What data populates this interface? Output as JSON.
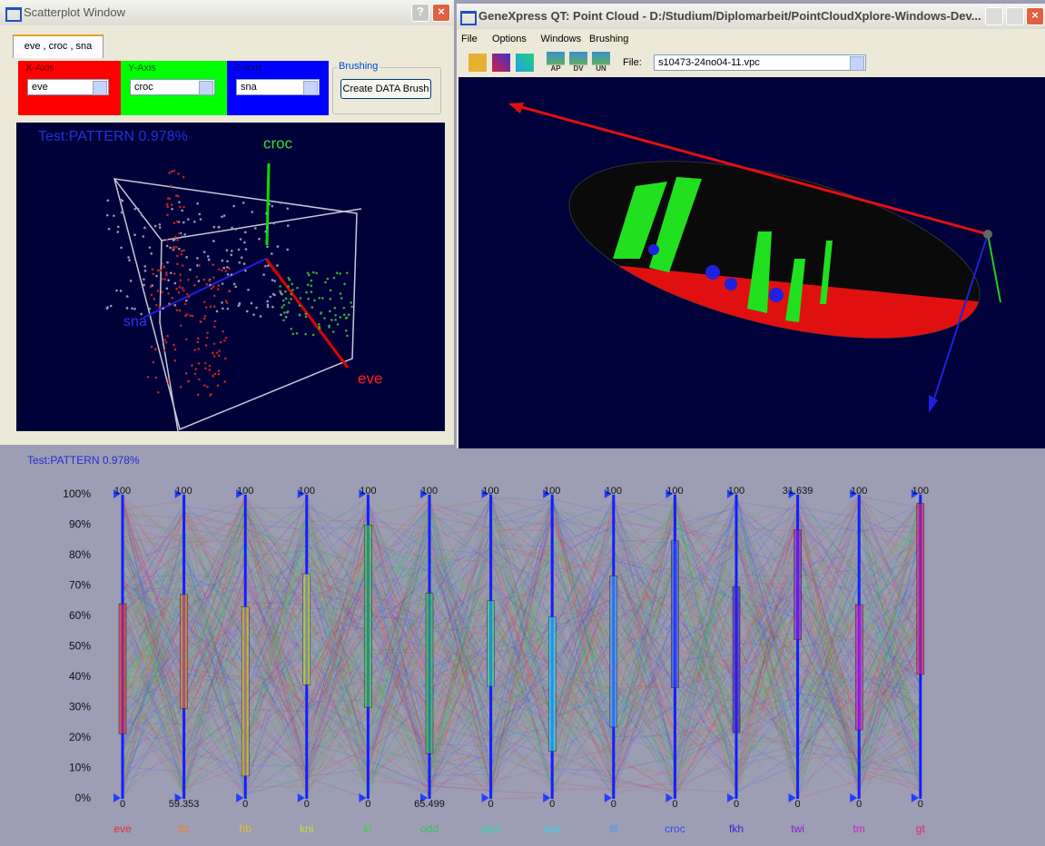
{
  "scatter_window": {
    "title": "Scatterplot Window",
    "tab": "eve , croc , sna",
    "x_axis": {
      "label": "X-Axis",
      "value": "eve"
    },
    "y_axis": {
      "label": "Y-Axis",
      "value": "croc"
    },
    "z_axis": {
      "label": "Z-Axis",
      "value": "sna"
    },
    "brushing": {
      "label": "Brushing",
      "button": "Create DATA Brush"
    },
    "view": {
      "caption": "Test:PATTERN 0.978%",
      "axis_labels": [
        "croc",
        "sna",
        "eve"
      ]
    }
  },
  "pointcloud_window": {
    "title": "GeneXpress QT: Point Cloud - D:/Studium/Diplomarbeit/PointCloudXplore-Windows-Dev...",
    "menu": [
      "File",
      "Options",
      "Windows",
      "Brushing"
    ],
    "toolbar": [
      "AP",
      "DV",
      "UN"
    ],
    "file_label": "File:",
    "file": "s10473-24no04-11.vpc"
  },
  "parallel_coordinates": {
    "caption": "Test:PATTERN 0.978%",
    "percent_labels": [
      "0%",
      "10%",
      "20%",
      "30%",
      "40%",
      "50%",
      "60%",
      "70%",
      "80%",
      "90%",
      "100%"
    ],
    "axes": [
      {
        "name": "eve",
        "color": "#e83030",
        "max": "100",
        "min": "0"
      },
      {
        "name": "ftz",
        "color": "#f08020",
        "max": "100",
        "min": "59.353"
      },
      {
        "name": "hb",
        "color": "#e8c020",
        "max": "100",
        "min": "0"
      },
      {
        "name": "kni",
        "color": "#c8e030",
        "max": "100",
        "min": "0"
      },
      {
        "name": "kr",
        "color": "#40d040",
        "max": "100",
        "min": "0"
      },
      {
        "name": "odd",
        "color": "#30c850",
        "max": "100",
        "min": "65.499"
      },
      {
        "name": "slp1",
        "color": "#30d8a0",
        "max": "100",
        "min": "0"
      },
      {
        "name": "sna",
        "color": "#30d8e8",
        "max": "100",
        "min": "0"
      },
      {
        "name": "tll",
        "color": "#40a0f0",
        "max": "100",
        "min": "0"
      },
      {
        "name": "croc",
        "color": "#3050f0",
        "max": "100",
        "min": "0"
      },
      {
        "name": "fkh",
        "color": "#4020d0",
        "max": "100",
        "min": "0"
      },
      {
        "name": "twi",
        "color": "#9020d0",
        "max": "31.639",
        "min": "0"
      },
      {
        "name": "tm",
        "color": "#d020c0",
        "max": "100",
        "min": "0"
      },
      {
        "name": "gt",
        "color": "#e02070",
        "max": "100",
        "min": "0"
      }
    ]
  }
}
